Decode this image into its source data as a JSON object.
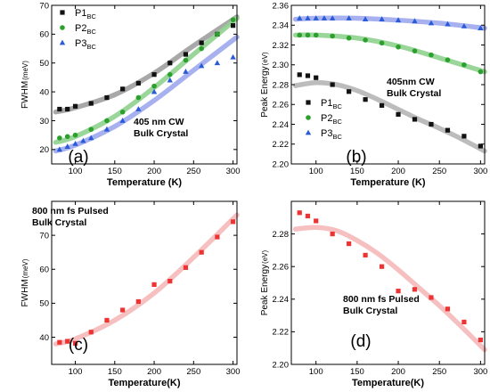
{
  "figure": {
    "panels": [
      {
        "id": "a",
        "panel_label": "(a)",
        "annotation": [
          "405 nm CW",
          "Bulk Crystal"
        ],
        "xlabel": "Temperature (K)",
        "ylabel_main": "FWHM",
        "ylabel_unit": "(meV)"
      },
      {
        "id": "b",
        "panel_label": "(b)",
        "annotation": [
          "405nm CW",
          "Bulk Crystal"
        ],
        "xlabel": "Temperature (K)",
        "ylabel_main": "Peak Energy",
        "ylabel_unit": "(eV)"
      },
      {
        "id": "c",
        "panel_label": "(c)",
        "annotation": [
          "800 nm fs Pulsed",
          "Bulk Crystal"
        ],
        "xlabel": "Temperature(K)",
        "ylabel_main": "FWHM",
        "ylabel_unit": "(meV)"
      },
      {
        "id": "d",
        "panel_label": "(d)",
        "annotation": [
          "800 nm fs Pulsed",
          "Bulk Crystal"
        ],
        "xlabel": "Temperature(K)",
        "ylabel_main": "Peak Energy",
        "ylabel_unit": "(eV)"
      }
    ]
  },
  "chart_data": [
    {
      "type": "scatter",
      "panel": "a",
      "xlim": [
        70,
        305
      ],
      "ylim": [
        15,
        70
      ],
      "x_ticks": [
        100,
        150,
        200,
        250,
        300
      ],
      "y_ticks": [
        20,
        30,
        40,
        50,
        60,
        70
      ],
      "legend_position": "top-left",
      "series": [
        {
          "name": "P1",
          "sub": "BC",
          "marker": "square",
          "color": "#111111",
          "fit_color": "#9e9e9e",
          "x": [
            80,
            90,
            100,
            120,
            140,
            160,
            180,
            200,
            220,
            240,
            260,
            280,
            300
          ],
          "y": [
            34,
            34,
            35,
            36,
            38,
            41,
            43,
            46,
            50,
            53,
            57,
            60,
            63
          ],
          "fit_x": [
            75,
            100,
            150,
            200,
            250,
            305
          ],
          "fit_y": [
            33,
            34.5,
            39,
            46.5,
            56,
            66
          ]
        },
        {
          "name": "P2",
          "sub": "BC",
          "marker": "circle",
          "color": "#2ca02c",
          "fit_color": "#8fd18f",
          "x": [
            80,
            90,
            100,
            120,
            140,
            160,
            180,
            200,
            220,
            240,
            260,
            280,
            300
          ],
          "y": [
            24,
            24.5,
            25,
            27,
            30,
            33,
            38,
            42,
            46,
            51,
            55,
            60,
            65
          ],
          "fit_x": [
            75,
            100,
            150,
            200,
            250,
            305
          ],
          "fit_y": [
            22.5,
            24.5,
            31.5,
            41.5,
            53,
            65.5
          ]
        },
        {
          "name": "P3",
          "sub": "BC",
          "marker": "triangle",
          "color": "#2a5bd7",
          "fit_color": "#9ea8ee",
          "x": [
            80,
            90,
            100,
            110,
            120,
            140,
            160,
            180,
            200,
            220,
            240,
            260,
            280,
            300
          ],
          "y": [
            20,
            21,
            22,
            23,
            24,
            27,
            30,
            34,
            40,
            44,
            47,
            49,
            50,
            52
          ],
          "fit_x": [
            75,
            100,
            150,
            200,
            250,
            305
          ],
          "fit_y": [
            19.5,
            21.5,
            28,
            37,
            47.5,
            59
          ]
        }
      ]
    },
    {
      "type": "scatter",
      "panel": "b",
      "xlim": [
        70,
        305
      ],
      "ylim": [
        2.2,
        2.36
      ],
      "x_ticks": [
        100,
        150,
        200,
        250,
        300
      ],
      "y_ticks": [
        2.2,
        2.22,
        2.24,
        2.26,
        2.28,
        2.3,
        2.32,
        2.34,
        2.36
      ],
      "legend_position": "center-left",
      "series": [
        {
          "name": "P1",
          "sub": "BC",
          "marker": "square",
          "color": "#111111",
          "fit_color": "#b5b5b5",
          "x": [
            80,
            90,
            100,
            120,
            140,
            160,
            180,
            200,
            220,
            240,
            260,
            280,
            300
          ],
          "y": [
            2.29,
            2.289,
            2.287,
            2.28,
            2.273,
            2.265,
            2.259,
            2.25,
            2.245,
            2.24,
            2.234,
            2.228,
            2.218
          ],
          "fit_x": [
            75,
            100,
            125,
            150,
            175,
            200,
            225,
            250,
            275,
            305
          ],
          "fit_y": [
            2.279,
            2.282,
            2.28,
            2.274,
            2.265,
            2.255,
            2.245,
            2.236,
            2.226,
            2.213
          ]
        },
        {
          "name": "P2",
          "sub": "BC",
          "marker": "circle",
          "color": "#2ca02c",
          "fit_color": "#8fd18f",
          "x": [
            80,
            90,
            100,
            120,
            140,
            160,
            180,
            200,
            220,
            240,
            260,
            280,
            300
          ],
          "y": [
            2.33,
            2.33,
            2.33,
            2.329,
            2.327,
            2.325,
            2.322,
            2.318,
            2.314,
            2.31,
            2.305,
            2.3,
            2.293
          ],
          "fit_x": [
            75,
            100,
            150,
            200,
            250,
            305
          ],
          "fit_y": [
            2.33,
            2.33,
            2.327,
            2.319,
            2.307,
            2.293
          ]
        },
        {
          "name": "P3",
          "sub": "BC",
          "marker": "triangle",
          "color": "#2a5bd7",
          "fit_color": "#9ea8ee",
          "x": [
            80,
            90,
            100,
            110,
            120,
            140,
            160,
            180,
            200,
            220,
            240,
            260,
            280,
            300
          ],
          "y": [
            2.347,
            2.347,
            2.347,
            2.347,
            2.347,
            2.347,
            2.346,
            2.346,
            2.345,
            2.344,
            2.342,
            2.341,
            2.339,
            2.337
          ],
          "fit_x": [
            75,
            100,
            150,
            200,
            250,
            305
          ],
          "fit_y": [
            2.346,
            2.347,
            2.347,
            2.345,
            2.342,
            2.337
          ]
        }
      ]
    },
    {
      "type": "scatter",
      "panel": "c",
      "xlim": [
        70,
        305
      ],
      "ylim": [
        32,
        80
      ],
      "x_ticks": [
        100,
        150,
        200,
        250,
        300
      ],
      "y_ticks": [
        40,
        50,
        60,
        70
      ],
      "series": [
        {
          "marker": "square",
          "color": "#ee3333",
          "fit_color": "#f6b9b9",
          "x": [
            80,
            90,
            100,
            120,
            140,
            160,
            180,
            200,
            220,
            240,
            260,
            280,
            300
          ],
          "y": [
            38.5,
            38.8,
            38.2,
            41.5,
            45,
            48,
            50.5,
            55.5,
            56.5,
            60.5,
            65,
            69.5,
            74
          ],
          "fit_x": [
            75,
            100,
            150,
            200,
            250,
            305
          ],
          "fit_y": [
            38,
            39.5,
            45,
            53,
            63.5,
            76
          ]
        }
      ]
    },
    {
      "type": "scatter",
      "panel": "d",
      "xlim": [
        70,
        305
      ],
      "ylim": [
        2.2,
        2.3
      ],
      "x_ticks": [
        100,
        150,
        200,
        250,
        300
      ],
      "y_ticks": [
        2.2,
        2.22,
        2.24,
        2.26,
        2.28
      ],
      "series": [
        {
          "marker": "square",
          "color": "#ee3333",
          "fit_color": "#f6b9b9",
          "x": [
            80,
            90,
            100,
            120,
            140,
            160,
            180,
            200,
            220,
            240,
            260,
            280,
            300
          ],
          "y": [
            2.293,
            2.291,
            2.288,
            2.28,
            2.274,
            2.267,
            2.26,
            2.245,
            2.246,
            2.241,
            2.234,
            2.226,
            2.215
          ],
          "fit_x": [
            75,
            100,
            125,
            150,
            175,
            200,
            225,
            250,
            275,
            305
          ],
          "fit_y": [
            2.283,
            2.284,
            2.282,
            2.276,
            2.268,
            2.258,
            2.247,
            2.236,
            2.224,
            2.209
          ]
        }
      ]
    }
  ]
}
